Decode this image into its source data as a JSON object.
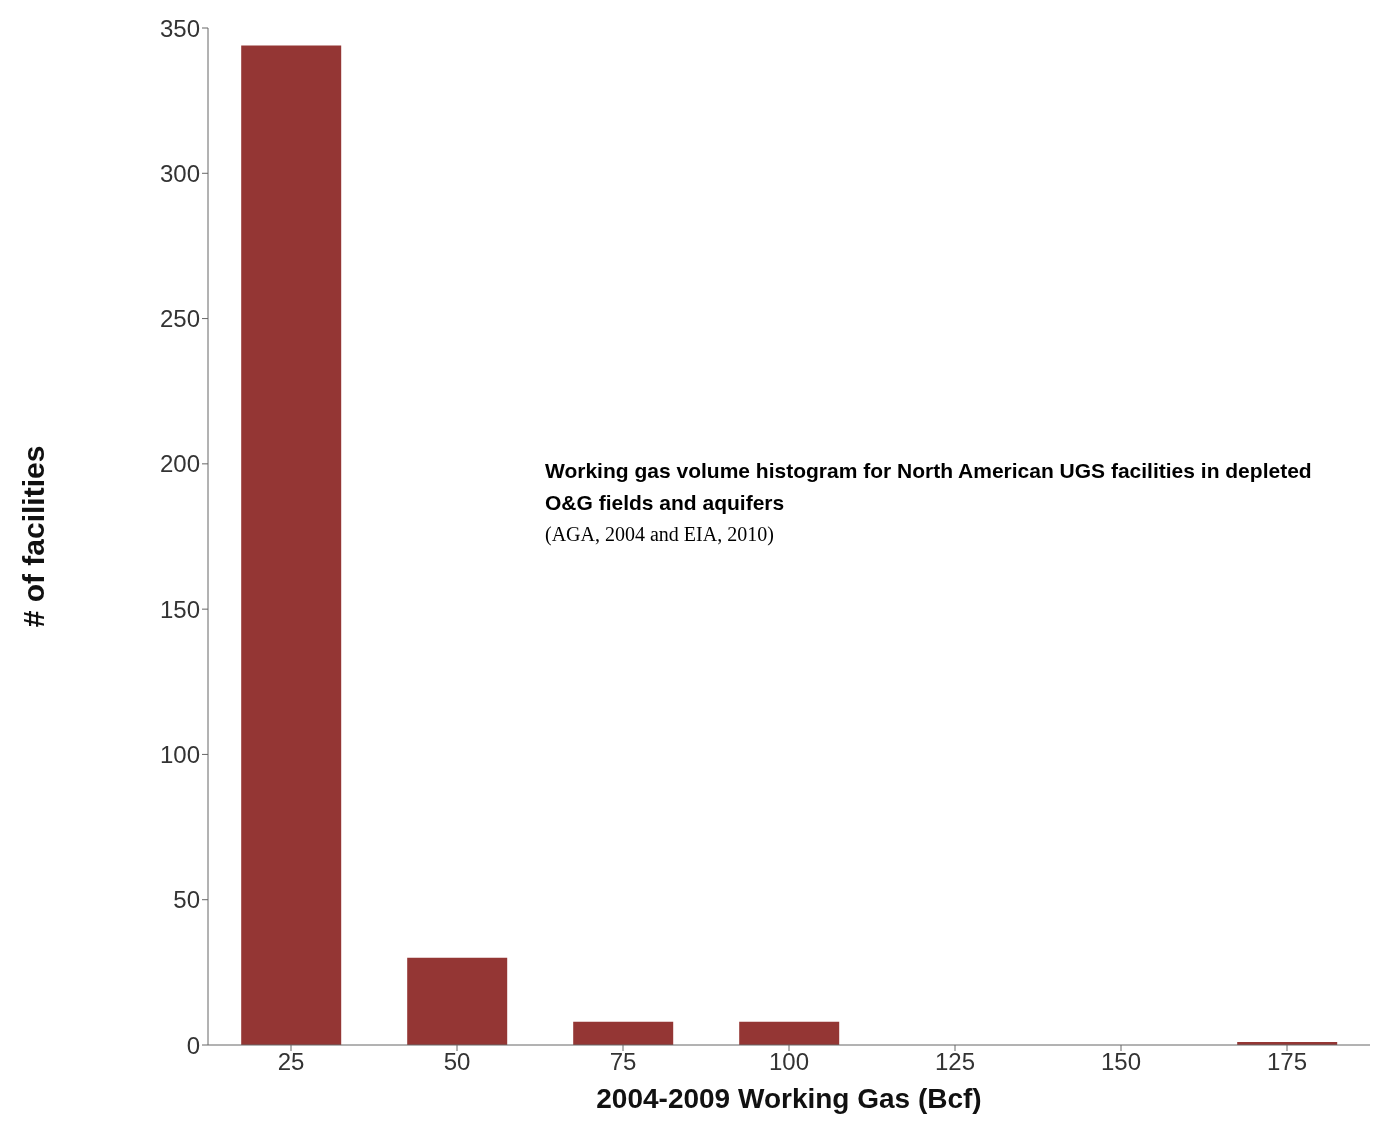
{
  "chart_data": {
    "type": "bar",
    "title": "Working gas volume histogram for North American UGS facilities in depleted O&G fields and aquifers",
    "annotations": [
      "(AGA, 2004 and EIA, 2010)"
    ],
    "xlabel": "2004-2009  Working Gas (Bcf)",
    "ylabel": "# of facilities",
    "categories": [
      "25",
      "50",
      "75",
      "100",
      "125",
      "150",
      "175"
    ],
    "values": [
      344,
      30,
      8,
      8,
      0,
      0,
      1
    ],
    "color": "#943634",
    "ylim": [
      0,
      350
    ],
    "yticks": [
      0,
      50,
      100,
      150,
      200,
      250,
      300,
      350
    ],
    "grid": false,
    "legend": false
  }
}
